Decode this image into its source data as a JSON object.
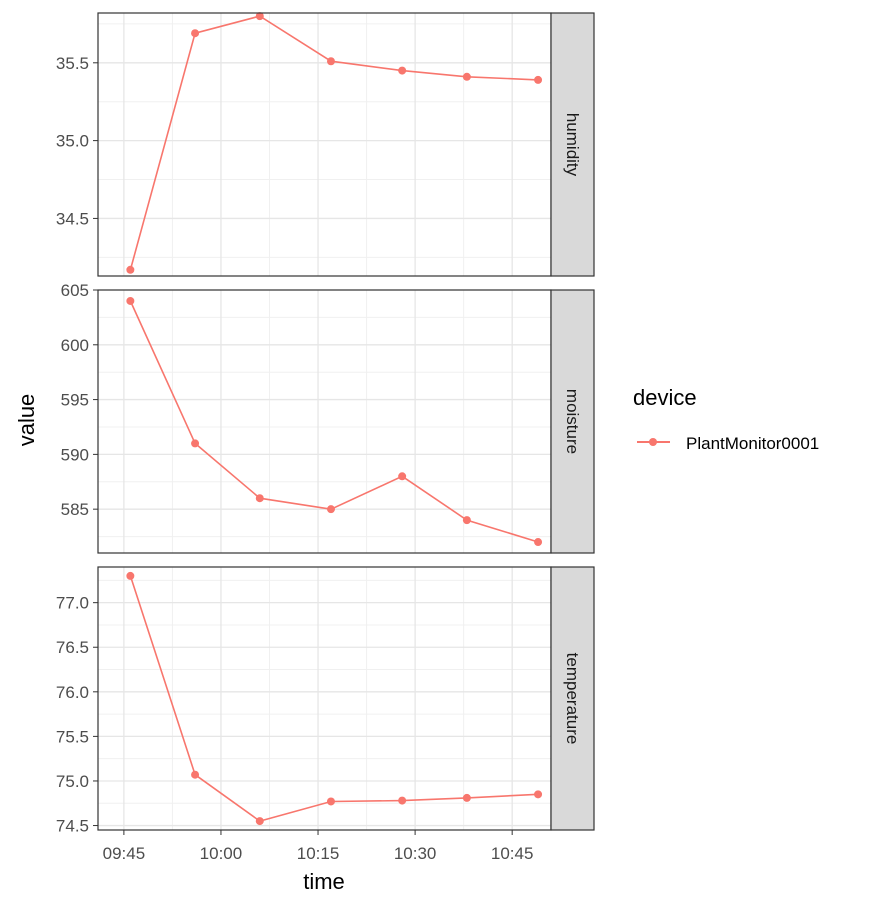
{
  "chart_data": {
    "type": "line",
    "facet_direction": "vertical",
    "grid": true,
    "legend_position": "right",
    "xlabel": "time",
    "ylabel": "value",
    "x_ticks": [
      "09:45",
      "10:00",
      "10:15",
      "10:30",
      "10:45"
    ],
    "x": [
      "09:46",
      "09:56",
      "10:06",
      "10:17",
      "10:28",
      "10:38",
      "10:49"
    ],
    "legend": {
      "title": "device",
      "entries": [
        {
          "name": "PlantMonitor0001",
          "color": "#F8766D"
        }
      ]
    },
    "panels": [
      {
        "strip": "humidity",
        "ylim": [
          34.13,
          35.82
        ],
        "y_ticks": [
          "34.5",
          "35.0",
          "35.5"
        ],
        "series": [
          {
            "name": "PlantMonitor0001",
            "values": [
              34.17,
              35.69,
              35.8,
              35.51,
              35.45,
              35.41,
              35.39
            ]
          }
        ]
      },
      {
        "strip": "moisture",
        "ylim": [
          581.0,
          605.0
        ],
        "y_ticks": [
          "585",
          "590",
          "595",
          "600",
          "605"
        ],
        "series": [
          {
            "name": "PlantMonitor0001",
            "values": [
              604,
              591,
              586,
              585,
              588,
              584,
              582
            ]
          }
        ]
      },
      {
        "strip": "temperature",
        "ylim": [
          74.45,
          77.4
        ],
        "y_ticks": [
          "74.5",
          "75.0",
          "75.5",
          "76.0",
          "76.5",
          "77.0"
        ],
        "series": [
          {
            "name": "PlantMonitor0001",
            "values": [
              77.3,
              75.07,
              74.55,
              74.77,
              74.78,
              74.81,
              74.85
            ]
          }
        ]
      }
    ]
  }
}
